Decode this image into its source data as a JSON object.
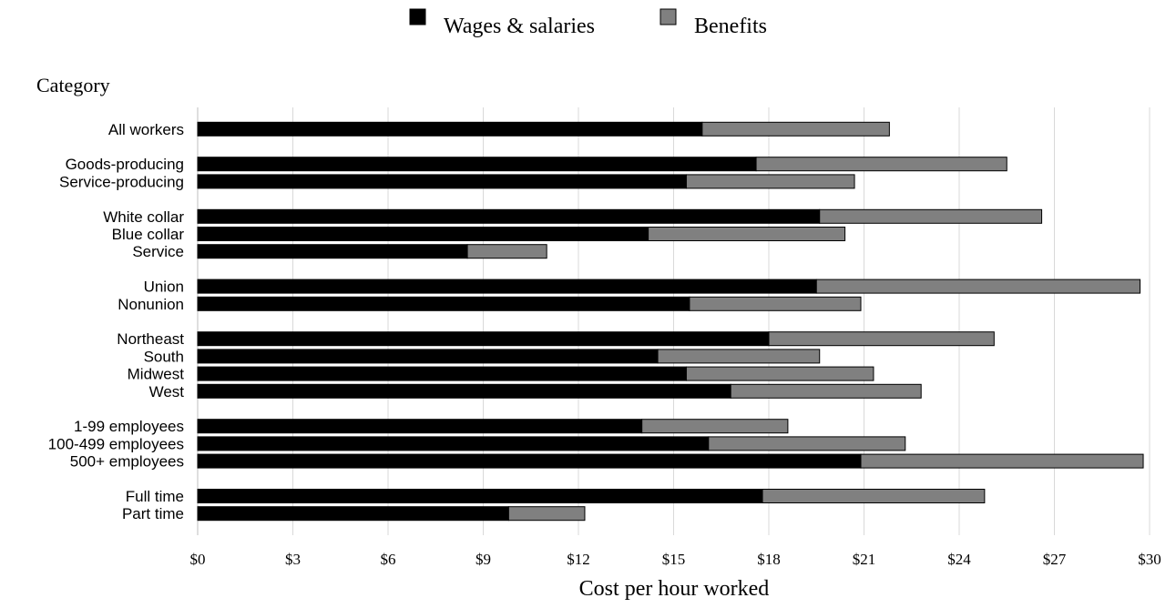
{
  "chart_data": {
    "type": "bar",
    "orientation": "horizontal",
    "stacked": true,
    "title": "",
    "category_axis_label": "Category",
    "xlabel": "Cost per hour worked",
    "xlim": [
      0,
      30
    ],
    "x_ticks": [
      "$0",
      "$3",
      "$6",
      "$9",
      "$12",
      "$15",
      "$18",
      "$21",
      "$24",
      "$27",
      "$30"
    ],
    "grid": "vertical",
    "legend_position": "top-center",
    "groups": [
      [
        "All workers"
      ],
      [
        "Goods-producing",
        "Service-producing"
      ],
      [
        "White collar",
        "Blue collar",
        "Service"
      ],
      [
        "Union",
        "Nonunion"
      ],
      [
        "Northeast",
        "South",
        "Midwest",
        "West"
      ],
      [
        "1-99 employees",
        "100-499 employees",
        "500+ employees"
      ],
      [
        "Full time",
        "Part time"
      ]
    ],
    "categories": [
      "All workers",
      "Goods-producing",
      "Service-producing",
      "White collar",
      "Blue collar",
      "Service",
      "Union",
      "Nonunion",
      "Northeast",
      "South",
      "Midwest",
      "West",
      "1-99 employees",
      "100-499 employees",
      "500+ employees",
      "Full time",
      "Part time"
    ],
    "series": [
      {
        "name": "Wages & salaries",
        "color": "#000000",
        "values": [
          15.9,
          17.6,
          15.4,
          19.6,
          14.2,
          8.5,
          19.5,
          15.5,
          18.0,
          14.5,
          15.4,
          16.8,
          14.0,
          16.1,
          20.9,
          17.8,
          9.8
        ]
      },
      {
        "name": "Benefits",
        "color": "#808080",
        "values": [
          5.9,
          7.9,
          5.3,
          7.0,
          6.2,
          2.5,
          10.2,
          5.4,
          7.1,
          5.1,
          5.9,
          6.0,
          4.6,
          6.2,
          8.9,
          7.0,
          2.4
        ]
      }
    ]
  }
}
